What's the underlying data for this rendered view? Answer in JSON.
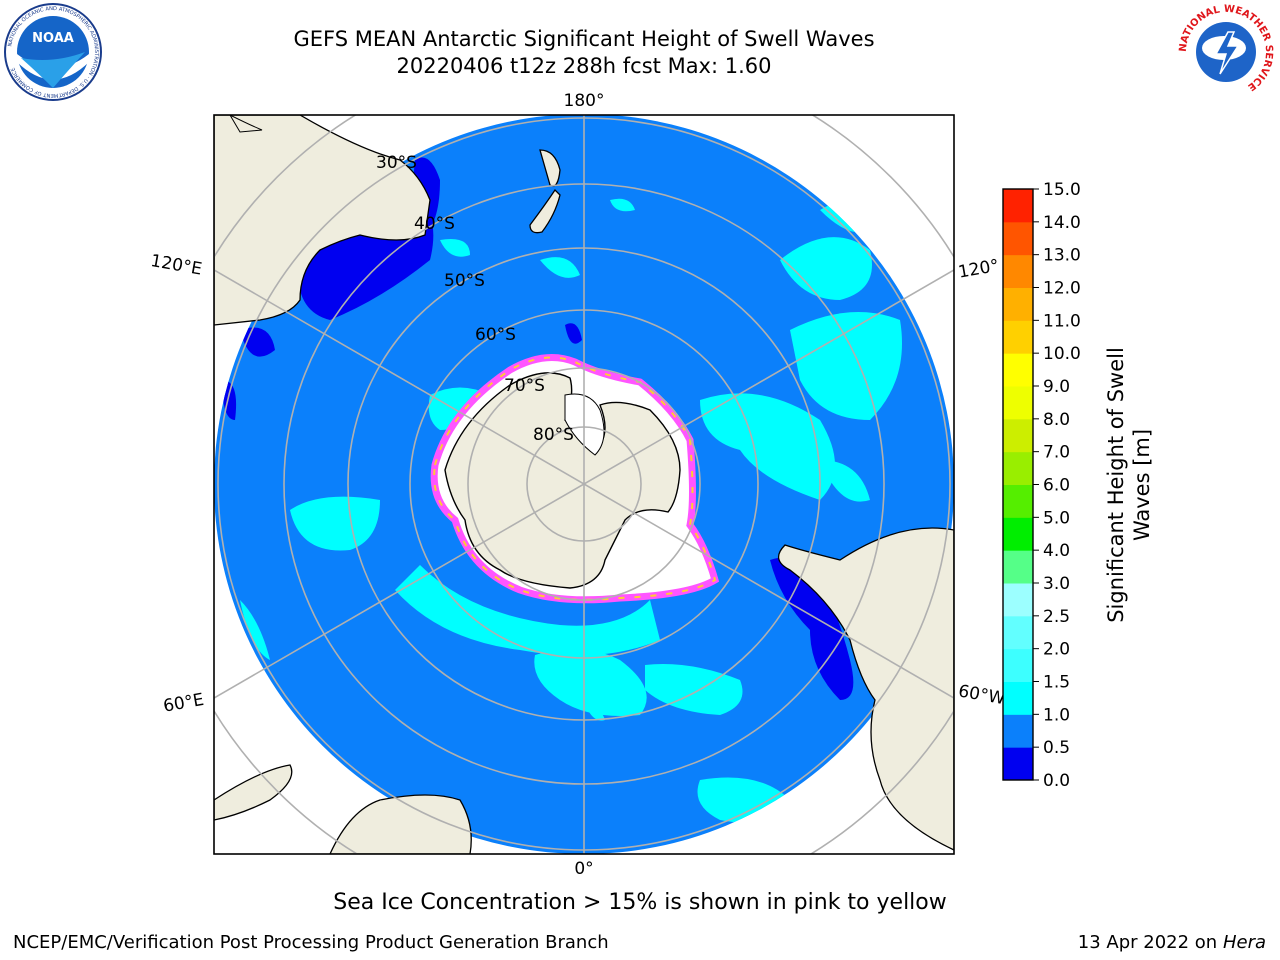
{
  "title": {
    "line1": "GEFS MEAN Antarctic Significant Height of Swell Waves",
    "line2": "20220406 t12z 288h fcst   Max: 1.60"
  },
  "logos": {
    "left": "NOAA",
    "left_ring_text": "NATIONAL OCEANIC AND ATMOSPHERIC ADMINISTRATION · U.S. DEPARTMENT OF COMMERCE",
    "right_ring_text": "NATIONAL WEATHER SERVICE"
  },
  "map": {
    "projection": "south-polar-stereographic",
    "meridian_labels": {
      "top": "180°",
      "bottom": "0°",
      "upper_left": "120°E",
      "upper_right": "120°",
      "lower_left": "60°E",
      "lower_right": "60°W"
    },
    "lat_labels": [
      "30°S",
      "40°S",
      "50°S",
      "60°S",
      "70°S",
      "80°S"
    ],
    "colors": {
      "land": "#efedde",
      "ocean_low": "#0b80fb",
      "ocean_mid": "#00ffff",
      "ocean_deep": "#0000f0",
      "ice_edge": "#ff55ff",
      "grid": "#b0b0b0"
    }
  },
  "colorbar": {
    "label_line1": "Significant Height of Swell",
    "label_line2": "Waves [m]",
    "ticks": [
      "0.0",
      "0.5",
      "1.0",
      "1.5",
      "2.0",
      "2.5",
      "3.0",
      "4.0",
      "5.0",
      "6.0",
      "7.0",
      "8.0",
      "9.0",
      "10.0",
      "11.0",
      "12.0",
      "13.0",
      "14.0",
      "15.0"
    ],
    "colors": [
      "#0000f0",
      "#0b80fb",
      "#00ffff",
      "#3dffff",
      "#62ffff",
      "#9cffff",
      "#55ff88",
      "#00ee00",
      "#55ee00",
      "#99ee00",
      "#ccee00",
      "#eeff00",
      "#ffff00",
      "#ffd000",
      "#ffb000",
      "#ff8800",
      "#ff5500",
      "#ff2200"
    ]
  },
  "footer": {
    "note": "Sea Ice Concentration > 15% is shown in pink to yellow",
    "credit": "NCEP/EMC/Verification Post Processing Product Generation Branch",
    "date": "13 Apr 2022 on ",
    "machine": "Hera"
  }
}
